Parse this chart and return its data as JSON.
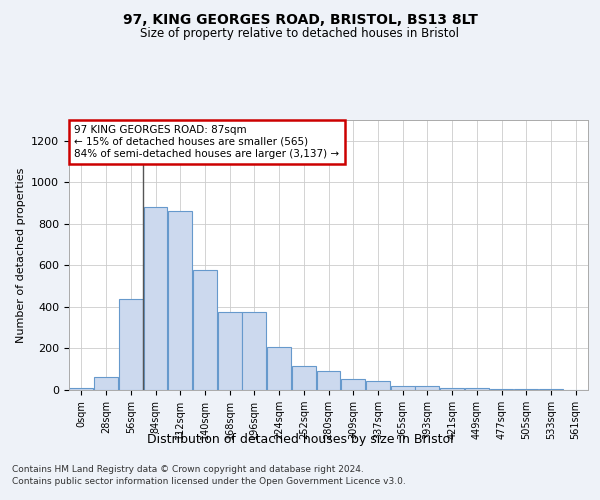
{
  "title1": "97, KING GEORGES ROAD, BRISTOL, BS13 8LT",
  "title2": "Size of property relative to detached houses in Bristol",
  "xlabel": "Distribution of detached houses by size in Bristol",
  "ylabel": "Number of detached properties",
  "bar_values": [
    12,
    65,
    440,
    880,
    860,
    580,
    375,
    375,
    205,
    115,
    90,
    55,
    45,
    20,
    18,
    12,
    8,
    5,
    4,
    3,
    2
  ],
  "bar_labels": [
    "0sqm",
    "28sqm",
    "56sqm",
    "84sqm",
    "112sqm",
    "140sqm",
    "168sqm",
    "196sqm",
    "224sqm",
    "252sqm",
    "280sqm",
    "309sqm",
    "337sqm",
    "365sqm",
    "393sqm",
    "421sqm",
    "449sqm",
    "477sqm",
    "505sqm",
    "533sqm",
    "561sqm"
  ],
  "bar_color": "#ccd9ee",
  "bar_edge_color": "#6699cc",
  "annotation_text": "97 KING GEORGES ROAD: 87sqm\n← 15% of detached houses are smaller (565)\n84% of semi-detached houses are larger (3,137) →",
  "annotation_box_color": "#ffffff",
  "annotation_box_edge_color": "#cc0000",
  "ylim": [
    0,
    1300
  ],
  "yticks": [
    0,
    200,
    400,
    600,
    800,
    1000,
    1200
  ],
  "footer_line1": "Contains HM Land Registry data © Crown copyright and database right 2024.",
  "footer_line2": "Contains public sector information licensed under the Open Government Licence v3.0.",
  "bg_color": "#eef2f8",
  "plot_bg_color": "#ffffff",
  "grid_color": "#cccccc"
}
